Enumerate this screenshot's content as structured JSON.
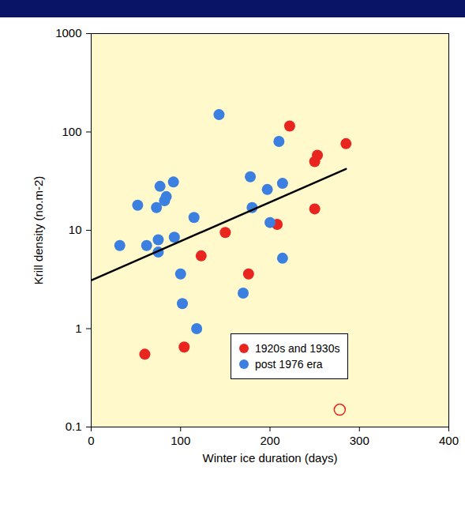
{
  "chart_data": {
    "type": "scatter",
    "x_label": "Winter ice duration (days)",
    "y_label": "Krill density (no.m-2)",
    "xlim": [
      0,
      400
    ],
    "xticks": [
      0,
      100,
      200,
      300,
      400
    ],
    "ylim": [
      0.1,
      1000
    ],
    "yticks": [
      0.1,
      1,
      10,
      100,
      1000
    ],
    "log": "y",
    "grid": false,
    "legend": "bottom",
    "series": [
      {
        "name": "1920s and 1930s",
        "color": "#e8251f",
        "marker": "circle",
        "x": [
          60,
          104,
          123,
          150,
          176,
          208,
          222,
          250,
          250,
          253,
          285
        ],
        "values": [
          0.55,
          0.65,
          5.5,
          9.5,
          3.6,
          11.5,
          115,
          50,
          16.5,
          58,
          76
        ]
      },
      {
        "name": "post 1976 era",
        "color": "#3b7fe0",
        "marker": "circle",
        "x": [
          32,
          52,
          62,
          73,
          75,
          77,
          75,
          82,
          84,
          92,
          93,
          100,
          102,
          115,
          118,
          143,
          170,
          178,
          180,
          197,
          200,
          210,
          214,
          214
        ],
        "values": [
          7,
          18,
          7,
          17,
          8,
          28,
          6,
          20,
          22,
          31,
          8.5,
          3.6,
          1.8,
          13.5,
          1.0,
          150,
          2.3,
          35,
          17,
          26,
          12,
          80,
          30,
          5.2
        ]
      },
      {
        "color": "#e8251f",
        "marker": "open_circle",
        "x": [
          278
        ],
        "values": [
          0.15
        ]
      },
      {
        "type": "line",
        "color": "#000000",
        "line_style": "solid",
        "x": [
          0,
          285
        ],
        "values": [
          3.1,
          42
        ]
      }
    ]
  }
}
